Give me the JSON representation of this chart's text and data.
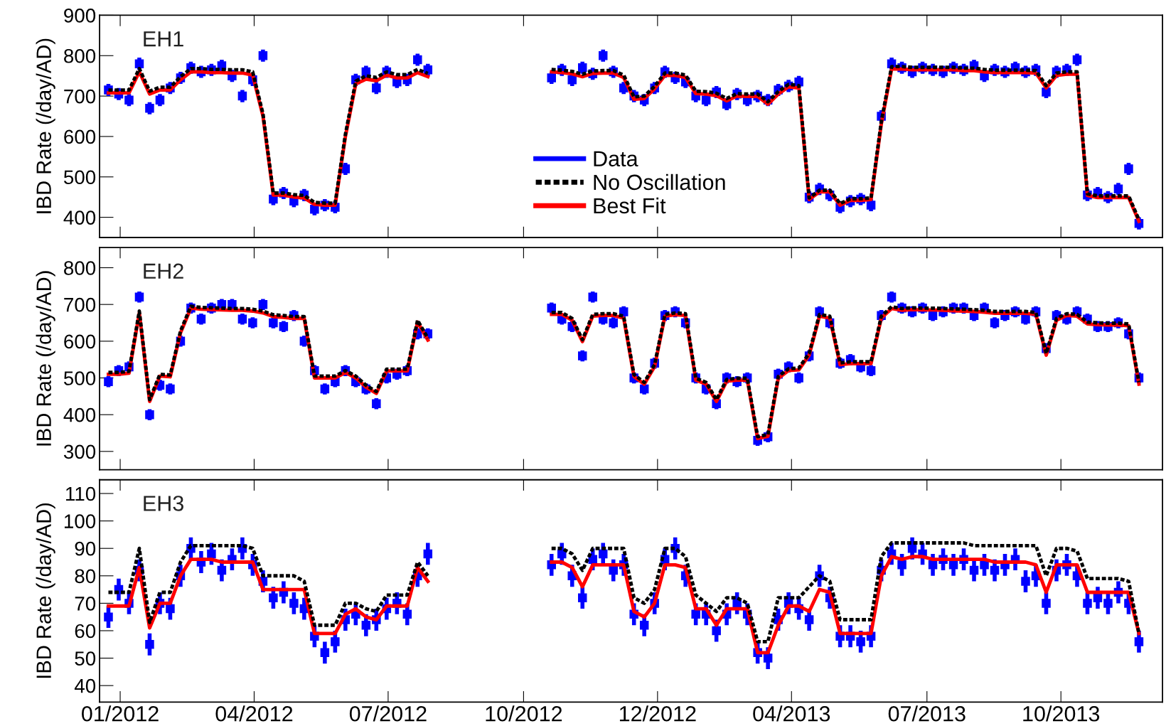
{
  "chart_data": [
    {
      "type": "line",
      "ylabel": "IBD Rate (/day/AD)",
      "annotations": [
        "EH1"
      ],
      "legend": "bottom",
      "tick_labels": "y",
      "x": [
        "2011-12-24",
        "2011-12-31",
        "2012-01-07",
        "2012-01-14",
        "2012-01-21",
        "2012-01-28",
        "2012-02-04",
        "2012-02-11",
        "2012-02-18",
        "2012-02-25",
        "2012-03-03",
        "2012-03-10",
        "2012-03-17",
        "2012-03-24",
        "2012-03-31",
        "2012-04-07",
        "2012-04-14",
        "2012-04-21",
        "2012-04-28",
        "2012-05-05",
        "2012-05-12",
        "2012-05-19",
        "2012-05-26",
        "2012-06-02",
        "2012-06-09",
        "2012-06-16",
        "2012-06-23",
        "2012-06-30",
        "2012-07-07",
        "2012-07-14",
        "2012-07-21",
        "2012-07-28",
        "2012-09-01",
        "2012-10-20",
        "2012-10-27",
        "2012-11-03",
        "2012-11-10",
        "2012-11-17",
        "2012-11-24",
        "2012-12-01",
        "2012-12-08",
        "2012-12-15",
        "2012-12-22",
        "2012-12-29",
        "2013-01-05",
        "2013-01-12",
        "2013-01-19",
        "2013-01-26",
        "2013-02-02",
        "2013-02-09",
        "2013-02-16",
        "2013-02-23",
        "2013-03-02",
        "2013-03-09",
        "2013-03-16",
        "2013-03-23",
        "2013-03-30",
        "2013-04-06",
        "2013-04-13",
        "2013-04-20",
        "2013-04-27",
        "2013-05-04",
        "2013-05-11",
        "2013-05-18",
        "2013-05-25",
        "2013-06-01",
        "2013-06-08",
        "2013-06-15",
        "2013-06-22",
        "2013-06-29",
        "2013-07-06",
        "2013-07-13",
        "2013-07-20",
        "2013-07-27",
        "2013-08-03",
        "2013-08-10",
        "2013-08-17",
        "2013-08-24",
        "2013-08-31",
        "2013-09-07",
        "2013-09-14",
        "2013-09-21",
        "2013-09-28",
        "2013-10-05",
        "2013-10-12",
        "2013-10-19",
        "2013-10-26",
        "2013-11-02",
        "2013-11-09",
        "2013-11-16",
        "2013-11-23"
      ],
      "xlim": [
        "2011-12-18",
        "2013-12-09"
      ],
      "xticks": [
        {
          "value": "2012-01-01",
          "label": null
        },
        {
          "value": "2012-04-01",
          "label": null
        },
        {
          "value": "2012-07-01",
          "label": null
        },
        {
          "value": "2012-10-01",
          "label": null
        },
        {
          "value": "2012-12-31",
          "label": null
        },
        {
          "value": "2013-04-01",
          "label": null
        },
        {
          "value": "2013-07-02",
          "label": null
        },
        {
          "value": "2013-10-01",
          "label": null
        }
      ],
      "ylim": [
        350,
        900
      ],
      "yticks": [
        400,
        500,
        600,
        700,
        800,
        900
      ],
      "series": [
        {
          "name": "Data",
          "type": "scatter",
          "marker": "square",
          "color": "#0000ff",
          "values": [
            715,
            705,
            690,
            780,
            670,
            690,
            720,
            745,
            770,
            760,
            765,
            775,
            750,
            700,
            740,
            800,
            445,
            460,
            440,
            455,
            420,
            430,
            425,
            520,
            740,
            760,
            720,
            760,
            735,
            740,
            790,
            765,
            null,
            745,
            765,
            740,
            770,
            755,
            800,
            760,
            720,
            700,
            690,
            720,
            760,
            745,
            735,
            700,
            690,
            710,
            680,
            705,
            690,
            700,
            690,
            715,
            725,
            735,
            450,
            470,
            455,
            425,
            440,
            445,
            430,
            650,
            780,
            770,
            760,
            770,
            765,
            760,
            770,
            765,
            775,
            750,
            765,
            760,
            770,
            760,
            765,
            710,
            760,
            765,
            790,
            455,
            460,
            450,
            470,
            520,
            385
          ],
          "errors": [
            15,
            15,
            15,
            15,
            15,
            15,
            15,
            15,
            15,
            15,
            15,
            15,
            15,
            15,
            15,
            15,
            15,
            15,
            15,
            15,
            15,
            15,
            15,
            15,
            15,
            15,
            15,
            15,
            15,
            15,
            15,
            15,
            null,
            15,
            15,
            15,
            15,
            15,
            15,
            15,
            15,
            15,
            15,
            15,
            15,
            15,
            15,
            15,
            15,
            15,
            15,
            15,
            15,
            15,
            15,
            15,
            15,
            15,
            15,
            15,
            15,
            15,
            15,
            15,
            15,
            15,
            15,
            15,
            15,
            15,
            15,
            15,
            15,
            15,
            15,
            15,
            15,
            15,
            15,
            15,
            15,
            15,
            15,
            15,
            15,
            15,
            15,
            15,
            15,
            15,
            15
          ]
        },
        {
          "name": "No Oscillation",
          "line_style": "dashed",
          "color": "#000000",
          "values": [
            715,
            715,
            715,
            768,
            712,
            722,
            722,
            748,
            768,
            768,
            766,
            766,
            765,
            765,
            760,
            656,
            460,
            460,
            456,
            454,
            437,
            435,
            435,
            606,
            737,
            750,
            746,
            760,
            753,
            753,
            766,
            756,
            null,
            766,
            764,
            761,
            754,
            762,
            763,
            763,
            752,
            698,
            700,
            724,
            757,
            757,
            752,
            712,
            711,
            707,
            694,
            706,
            705,
            705,
            686,
            711,
            729,
            726,
            448,
            467,
            467,
            434,
            446,
            446,
            448,
            637,
            773,
            773,
            771,
            771,
            771,
            771,
            771,
            769,
            769,
            766,
            764,
            764,
            764,
            764,
            763,
            726,
            757,
            760,
            760,
            458,
            453,
            453,
            453,
            453,
            394
          ]
        },
        {
          "name": "Best Fit",
          "line_style": "solid",
          "color": "#ff0000",
          "values": [
            708,
            708,
            708,
            760,
            705,
            715,
            715,
            740,
            760,
            760,
            758,
            758,
            757,
            757,
            752,
            650,
            455,
            455,
            450,
            448,
            432,
            430,
            430,
            600,
            730,
            742,
            738,
            752,
            745,
            745,
            758,
            748,
            null,
            760,
            758,
            755,
            748,
            756,
            757,
            757,
            746,
            692,
            694,
            718,
            751,
            751,
            746,
            706,
            705,
            701,
            688,
            700,
            699,
            699,
            680,
            705,
            723,
            720,
            444,
            463,
            463,
            430,
            442,
            442,
            444,
            631,
            767,
            767,
            765,
            765,
            765,
            765,
            765,
            763,
            763,
            760,
            758,
            758,
            758,
            758,
            757,
            720,
            751,
            754,
            754,
            454,
            449,
            449,
            449,
            449,
            390
          ]
        }
      ]
    },
    {
      "type": "line",
      "ylabel": "IBD Rate (/day/AD)",
      "annotations": [
        "EH2"
      ],
      "tick_labels": "y",
      "x": [
        "2011-12-24",
        "2011-12-31",
        "2012-01-07",
        "2012-01-14",
        "2012-01-21",
        "2012-01-28",
        "2012-02-04",
        "2012-02-11",
        "2012-02-18",
        "2012-02-25",
        "2012-03-03",
        "2012-03-10",
        "2012-03-17",
        "2012-03-24",
        "2012-03-31",
        "2012-04-07",
        "2012-04-14",
        "2012-04-21",
        "2012-04-28",
        "2012-05-05",
        "2012-05-12",
        "2012-05-19",
        "2012-05-26",
        "2012-06-02",
        "2012-06-09",
        "2012-06-16",
        "2012-06-23",
        "2012-06-30",
        "2012-07-07",
        "2012-07-14",
        "2012-07-21",
        "2012-07-28",
        "2012-09-01",
        "2012-10-20",
        "2012-10-27",
        "2012-11-03",
        "2012-11-10",
        "2012-11-17",
        "2012-11-24",
        "2012-12-01",
        "2012-12-08",
        "2012-12-15",
        "2012-12-22",
        "2012-12-29",
        "2013-01-05",
        "2013-01-12",
        "2013-01-19",
        "2013-01-26",
        "2013-02-02",
        "2013-02-09",
        "2013-02-16",
        "2013-02-23",
        "2013-03-02",
        "2013-03-09",
        "2013-03-16",
        "2013-03-23",
        "2013-03-30",
        "2013-04-06",
        "2013-04-13",
        "2013-04-20",
        "2013-04-27",
        "2013-05-04",
        "2013-05-11",
        "2013-05-18",
        "2013-05-25",
        "2013-06-01",
        "2013-06-08",
        "2013-06-15",
        "2013-06-22",
        "2013-06-29",
        "2013-07-06",
        "2013-07-13",
        "2013-07-20",
        "2013-07-27",
        "2013-08-03",
        "2013-08-10",
        "2013-08-17",
        "2013-08-24",
        "2013-08-31",
        "2013-09-07",
        "2013-09-14",
        "2013-09-21",
        "2013-09-28",
        "2013-10-05",
        "2013-10-12",
        "2013-10-19",
        "2013-10-26",
        "2013-11-02",
        "2013-11-09",
        "2013-11-16",
        "2013-11-23"
      ],
      "xlim": [
        "2011-12-18",
        "2013-12-09"
      ],
      "xticks": [
        {
          "value": "2012-01-01",
          "label": null
        },
        {
          "value": "2012-04-01",
          "label": null
        },
        {
          "value": "2012-07-01",
          "label": null
        },
        {
          "value": "2012-10-01",
          "label": null
        },
        {
          "value": "2012-12-31",
          "label": null
        },
        {
          "value": "2013-04-01",
          "label": null
        },
        {
          "value": "2013-07-02",
          "label": null
        },
        {
          "value": "2013-10-01",
          "label": null
        }
      ],
      "ylim": [
        250,
        855
      ],
      "yticks": [
        300,
        400,
        500,
        600,
        700,
        800
      ],
      "series": [
        {
          "type": "scatter",
          "marker": "square",
          "color": "#0000ff",
          "values": [
            490,
            520,
            530,
            720,
            400,
            480,
            470,
            600,
            690,
            660,
            690,
            700,
            700,
            660,
            650,
            700,
            650,
            640,
            670,
            600,
            520,
            470,
            490,
            520,
            490,
            470,
            430,
            500,
            510,
            520,
            620,
            620,
            null,
            690,
            660,
            640,
            560,
            720,
            660,
            650,
            680,
            500,
            470,
            540,
            670,
            680,
            650,
            500,
            470,
            430,
            500,
            490,
            500,
            330,
            340,
            510,
            530,
            500,
            560,
            680,
            650,
            540,
            550,
            530,
            520,
            670,
            720,
            690,
            680,
            690,
            670,
            680,
            690,
            690,
            670,
            690,
            650,
            670,
            680,
            660,
            680,
            580,
            670,
            660,
            680,
            660,
            640,
            640,
            650,
            620,
            500
          ],
          "errors": [
            15,
            15,
            15,
            15,
            15,
            15,
            15,
            15,
            15,
            15,
            15,
            15,
            15,
            15,
            15,
            15,
            15,
            15,
            15,
            15,
            15,
            15,
            15,
            15,
            15,
            15,
            15,
            15,
            15,
            15,
            15,
            15,
            null,
            15,
            15,
            15,
            15,
            15,
            15,
            15,
            15,
            15,
            15,
            15,
            15,
            15,
            15,
            15,
            15,
            15,
            15,
            15,
            15,
            15,
            15,
            15,
            15,
            15,
            15,
            15,
            15,
            15,
            15,
            15,
            15,
            15,
            15,
            15,
            15,
            15,
            15,
            15,
            15,
            15,
            15,
            15,
            15,
            15,
            15,
            15,
            15,
            15,
            15,
            15,
            15,
            15,
            15,
            15,
            15,
            15,
            15
          ]
        },
        {
          "line_style": "dashed",
          "color": "#000000",
          "values": [
            515,
            515,
            518,
            682,
            441,
            510,
            508,
            628,
            695,
            692,
            691,
            690,
            689,
            689,
            687,
            682,
            672,
            670,
            667,
            667,
            505,
            505,
            505,
            520,
            505,
            480,
            463,
            524,
            524,
            524,
            657,
            608,
            null,
            678,
            678,
            662,
            604,
            673,
            675,
            675,
            668,
            509,
            488,
            536,
            673,
            677,
            675,
            499,
            488,
            441,
            496,
            499,
            499,
            340,
            346,
            504,
            525,
            527,
            567,
            673,
            668,
            541,
            544,
            544,
            544,
            668,
            694,
            689,
            691,
            690,
            690,
            689,
            688,
            687,
            686,
            684,
            681,
            681,
            681,
            681,
            678,
            567,
            662,
            675,
            673,
            652,
            650,
            649,
            649,
            647,
            488
          ]
        },
        {
          "line_style": "solid",
          "color": "#ff0000",
          "values": [
            510,
            510,
            513,
            677,
            436,
            505,
            503,
            623,
            690,
            687,
            686,
            685,
            684,
            684,
            682,
            677,
            667,
            665,
            662,
            662,
            500,
            500,
            500,
            515,
            500,
            475,
            458,
            519,
            519,
            519,
            652,
            603,
            null,
            673,
            673,
            657,
            599,
            668,
            670,
            670,
            663,
            504,
            483,
            531,
            668,
            672,
            670,
            494,
            483,
            436,
            491,
            494,
            494,
            335,
            341,
            499,
            520,
            522,
            562,
            668,
            663,
            536,
            539,
            539,
            539,
            663,
            689,
            684,
            686,
            685,
            685,
            684,
            683,
            682,
            681,
            679,
            676,
            676,
            676,
            676,
            673,
            562,
            657,
            670,
            668,
            647,
            645,
            644,
            644,
            642,
            483
          ]
        }
      ]
    },
    {
      "type": "line",
      "ylabel": "IBD Rate (/day/AD)",
      "annotations": [
        "EH3"
      ],
      "x": [
        "2011-12-24",
        "2011-12-31",
        "2012-01-07",
        "2012-01-14",
        "2012-01-21",
        "2012-01-28",
        "2012-02-04",
        "2012-02-11",
        "2012-02-18",
        "2012-02-25",
        "2012-03-03",
        "2012-03-10",
        "2012-03-17",
        "2012-03-24",
        "2012-03-31",
        "2012-04-07",
        "2012-04-14",
        "2012-04-21",
        "2012-04-28",
        "2012-05-05",
        "2012-05-12",
        "2012-05-19",
        "2012-05-26",
        "2012-06-02",
        "2012-06-09",
        "2012-06-16",
        "2012-06-23",
        "2012-06-30",
        "2012-07-07",
        "2012-07-14",
        "2012-07-21",
        "2012-07-28",
        "2012-09-01",
        "2012-10-20",
        "2012-10-27",
        "2012-11-03",
        "2012-11-10",
        "2012-11-17",
        "2012-11-24",
        "2012-12-01",
        "2012-12-08",
        "2012-12-15",
        "2012-12-22",
        "2012-12-29",
        "2013-01-05",
        "2013-01-12",
        "2013-01-19",
        "2013-01-26",
        "2013-02-02",
        "2013-02-09",
        "2013-02-16",
        "2013-02-23",
        "2013-03-02",
        "2013-03-09",
        "2013-03-16",
        "2013-03-23",
        "2013-03-30",
        "2013-04-06",
        "2013-04-13",
        "2013-04-20",
        "2013-04-27",
        "2013-05-04",
        "2013-05-11",
        "2013-05-18",
        "2013-05-25",
        "2013-06-01",
        "2013-06-08",
        "2013-06-15",
        "2013-06-22",
        "2013-06-29",
        "2013-07-06",
        "2013-07-13",
        "2013-07-20",
        "2013-07-27",
        "2013-08-03",
        "2013-08-10",
        "2013-08-17",
        "2013-08-24",
        "2013-08-31",
        "2013-09-07",
        "2013-09-14",
        "2013-09-21",
        "2013-09-28",
        "2013-10-05",
        "2013-10-12",
        "2013-10-19",
        "2013-10-26",
        "2013-11-02",
        "2013-11-09",
        "2013-11-16",
        "2013-11-23"
      ],
      "xlim": [
        "2011-12-18",
        "2013-12-09"
      ],
      "xticks": [
        {
          "value": "2012-01-01",
          "label": "01/2012"
        },
        {
          "value": "2012-04-01",
          "label": "04/2012"
        },
        {
          "value": "2012-07-01",
          "label": "07/2012"
        },
        {
          "value": "2012-10-01",
          "label": "10/2012"
        },
        {
          "value": "2012-12-31",
          "label": "12/2012"
        },
        {
          "value": "2013-04-01",
          "label": "04/2013"
        },
        {
          "value": "2013-07-02",
          "label": "07/2013"
        },
        {
          "value": "2013-10-01",
          "label": "10/2013"
        }
      ],
      "ylim": [
        34,
        115
      ],
      "yticks": [
        40,
        50,
        60,
        70,
        80,
        90,
        100,
        110
      ],
      "series": [
        {
          "type": "scatter",
          "marker": "square",
          "color": "#0000ff",
          "values": [
            65,
            75,
            70,
            82,
            55,
            70,
            68,
            80,
            90,
            85,
            88,
            82,
            86,
            90,
            84,
            78,
            72,
            74,
            70,
            68,
            58,
            52,
            56,
            64,
            66,
            62,
            64,
            68,
            70,
            66,
            80,
            88,
            null,
            84,
            88,
            80,
            72,
            86,
            88,
            82,
            84,
            66,
            62,
            70,
            86,
            90,
            80,
            66,
            66,
            60,
            66,
            70,
            66,
            52,
            50,
            64,
            70,
            68,
            64,
            80,
            72,
            58,
            58,
            56,
            58,
            82,
            88,
            84,
            90,
            88,
            84,
            86,
            84,
            86,
            82,
            84,
            82,
            84,
            86,
            78,
            80,
            70,
            82,
            84,
            80,
            70,
            72,
            70,
            74,
            70,
            56
          ],
          "errors": [
            4,
            4,
            4,
            4,
            4,
            4,
            4,
            4,
            4,
            4,
            4,
            4,
            4,
            4,
            4,
            4,
            4,
            4,
            4,
            4,
            4,
            4,
            4,
            4,
            4,
            4,
            4,
            4,
            4,
            4,
            4,
            4,
            null,
            4,
            4,
            4,
            4,
            4,
            4,
            4,
            4,
            4,
            4,
            4,
            4,
            4,
            4,
            4,
            4,
            4,
            4,
            4,
            4,
            4,
            4,
            4,
            4,
            4,
            4,
            4,
            4,
            4,
            4,
            4,
            4,
            4,
            4,
            4,
            4,
            4,
            4,
            4,
            4,
            4,
            4,
            4,
            4,
            4,
            4,
            4,
            4,
            4,
            4,
            4,
            4,
            4,
            4,
            4,
            4,
            4,
            4
          ]
        },
        {
          "line_style": "dashed",
          "color": "#000000",
          "values": [
            74,
            74,
            74,
            90,
            63,
            74,
            74,
            85,
            91,
            91,
            91,
            91,
            91,
            91,
            90,
            80,
            80,
            80,
            80,
            78,
            62,
            62,
            62,
            70,
            70,
            68,
            67,
            73,
            73,
            73,
            85,
            80,
            null,
            90,
            90,
            88,
            82,
            90,
            90,
            90,
            90,
            72,
            70,
            75,
            90,
            90,
            87,
            73,
            70,
            67,
            72,
            72,
            70,
            56,
            56,
            72,
            72,
            72,
            76,
            80,
            78,
            64,
            64,
            64,
            64,
            87,
            92,
            92,
            92,
            92,
            92,
            92,
            92,
            92,
            91,
            91,
            91,
            91,
            91,
            91,
            91,
            80,
            90,
            90,
            89,
            79,
            79,
            79,
            79,
            78,
            59
          ]
        },
        {
          "line_style": "solid",
          "color": "#ff0000",
          "values": [
            69,
            69,
            69,
            83,
            61,
            70,
            70,
            80,
            86,
            86,
            86,
            85,
            85,
            85,
            85,
            75,
            75,
            75,
            75,
            75,
            59,
            59,
            59,
            66,
            68,
            65,
            64,
            69,
            69,
            69,
            83,
            78,
            null,
            85,
            85,
            83,
            76,
            84,
            84,
            84,
            84,
            67,
            65,
            70,
            84,
            84,
            83,
            68,
            68,
            62,
            68,
            68,
            68,
            52,
            52,
            62,
            69,
            69,
            67,
            75,
            74,
            59,
            59,
            59,
            59,
            80,
            87,
            86,
            87,
            87,
            86,
            86,
            86,
            86,
            86,
            86,
            85,
            85,
            85,
            85,
            84,
            74,
            84,
            84,
            84,
            74,
            74,
            74,
            74,
            74,
            59
          ]
        }
      ]
    }
  ]
}
